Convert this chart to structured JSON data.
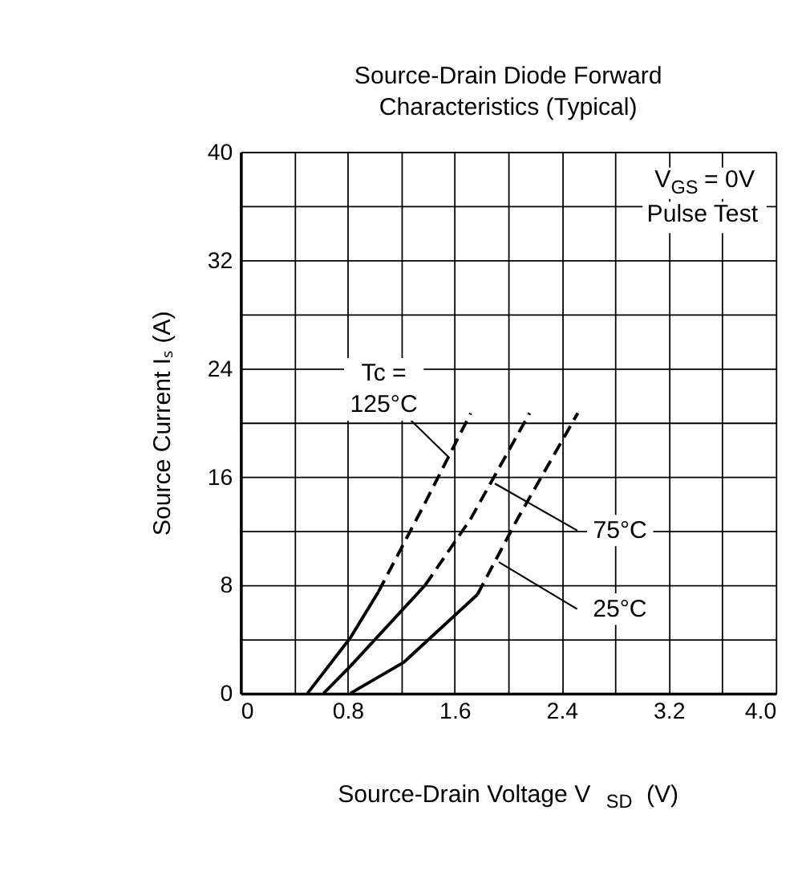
{
  "chart_data": {
    "type": "line",
    "title": "Source-Drain Diode Forward\nCharacteristics  (Typical)",
    "xlabel": "Source-Drain Voltage   V$_{SD}$  (V)",
    "ylabel": "Source Current   Iₛ  (A)",
    "series": [
      {
        "color": "#000000",
        "line_style": "solid",
        "x": [
          0.5,
          0.82,
          1.03
        ],
        "values": [
          0,
          4.1,
          7.5
        ]
      },
      {
        "color": "#000000",
        "line_style": "dashed",
        "x": [
          1.03,
          1.37,
          1.72
        ],
        "values": [
          7.5,
          13.9,
          20.7
        ]
      },
      {
        "color": "#000000",
        "line_style": "solid",
        "x": [
          0.62,
          0.82,
          1.38
        ],
        "values": [
          0,
          2.0,
          8.0
        ]
      },
      {
        "color": "#000000",
        "line_style": "dashed",
        "x": [
          1.38,
          1.72,
          2.16
        ],
        "values": [
          8.0,
          12.9,
          20.7
        ]
      },
      {
        "color": "#000000",
        "line_style": "solid",
        "x": [
          0.82,
          1.22,
          1.77
        ],
        "values": [
          0,
          2.3,
          7.3
        ]
      },
      {
        "color": "#000000",
        "line_style": "dashed",
        "x": [
          1.77,
          2.07,
          2.52
        ],
        "values": [
          7.3,
          12.9,
          20.7
        ]
      }
    ],
    "annotations": [
      "V$_{GS}$ = 0V\nPulse Test",
      {
        "text": "Tc =\n125°C",
        "x": 1.56,
        "y": 17.4
      },
      {
        "text": "75°C",
        "x": 1.9,
        "y": 15.5
      },
      {
        "text": "25°C",
        "x": 1.93,
        "y": 9.7
      }
    ],
    "xlim": [
      0,
      4
    ],
    "ylim": [
      0,
      40
    ],
    "xticks": [
      0,
      {
        "value": 0.4,
        "label": null
      },
      0.8,
      {
        "value": 1.2,
        "label": null
      },
      1.6,
      {
        "value": 2.0,
        "label": null
      },
      2.4,
      {
        "value": 2.8,
        "label": null
      },
      3.2,
      {
        "value": 3.6,
        "label": null
      },
      {
        "value": 4,
        "label": "4.0"
      }
    ],
    "yticks": [
      0,
      {
        "value": 4,
        "label": null
      },
      8,
      {
        "value": 12,
        "label": null
      },
      16,
      {
        "value": 20,
        "label": null
      },
      24,
      {
        "value": 28,
        "label": null
      },
      32,
      {
        "value": 36,
        "label": null
      },
      40
    ],
    "grid": true,
    "marker": "none"
  }
}
